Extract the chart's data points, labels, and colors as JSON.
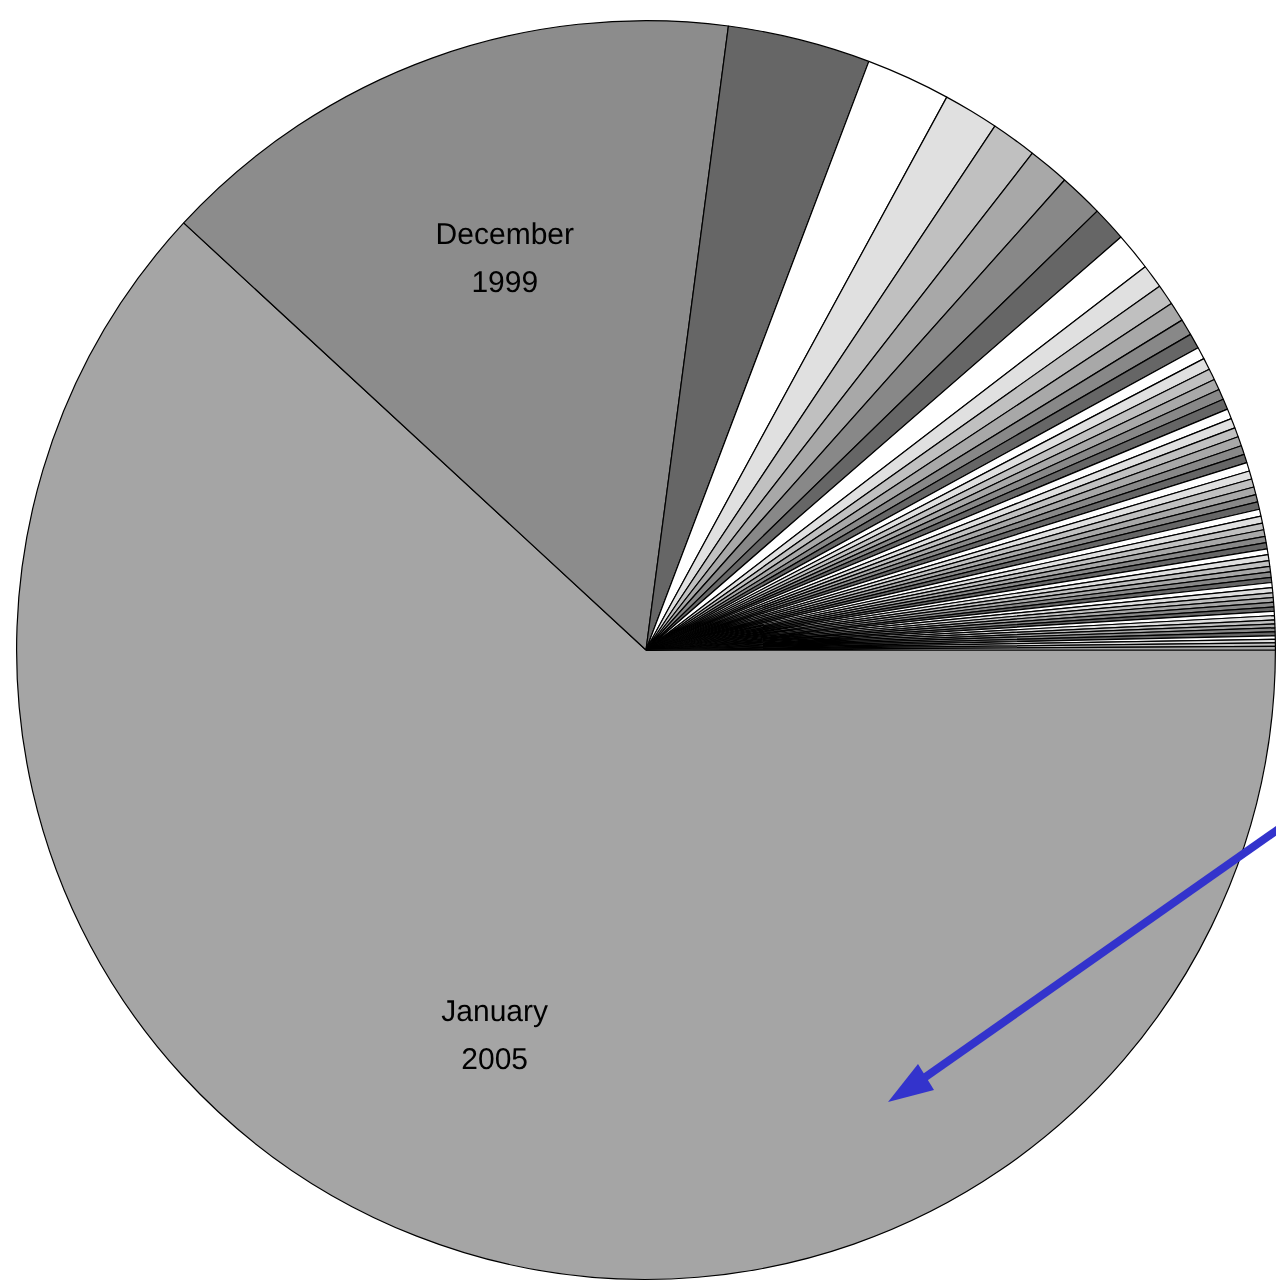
{
  "chart_data": {
    "type": "pie",
    "categories": [
      "January 2005",
      "December 1999",
      null,
      null,
      null,
      null,
      null,
      null,
      null,
      null,
      null,
      null,
      null,
      null,
      null,
      null,
      null,
      null,
      null,
      null,
      null,
      null,
      null,
      null,
      null,
      null,
      null,
      null,
      null,
      null,
      null,
      null,
      null,
      null,
      null,
      null,
      null,
      null,
      null,
      null,
      null,
      null,
      null,
      null,
      null,
      null,
      null,
      null,
      null,
      null,
      null,
      null,
      null,
      null,
      null,
      null,
      null,
      null,
      null,
      null,
      null
    ],
    "values": [
      61.87,
      15.22,
      3.67,
      2.17,
      1.42,
      1.17,
      1.06,
      1.14,
      0.89,
      0.97,
      0.61,
      0.53,
      0.5,
      0.42,
      0.39,
      0.31,
      0.3,
      0.29,
      0.28,
      0.27,
      0.27,
      0.26,
      0.25,
      0.24,
      0.24,
      0.23,
      0.22,
      0.22,
      0.21,
      0.21,
      0.2,
      0.19,
      0.19,
      0.18,
      0.18,
      0.17,
      0.17,
      0.16,
      0.16,
      0.15,
      0.15,
      0.15,
      0.14,
      0.14,
      0.13,
      0.13,
      0.13,
      0.12,
      0.12,
      0.12,
      0.11,
      0.11,
      0.11,
      0.1,
      0.1,
      0.1,
      0.1,
      0.09,
      0.09,
      0.09,
      0.09
    ],
    "colors": [
      "#a5a5a5",
      "#8c8c8c",
      "#666666",
      "#ffffff",
      "#e0e0e0",
      "#c0c0c0",
      "#a8a8a8",
      "#888888",
      "#666666",
      "#ffffff",
      "#e0e0e0",
      "#c0c0c0",
      "#a8a8a8",
      "#888888",
      "#666666",
      "#ffffff",
      "#e0e0e0",
      "#c0c0c0",
      "#a8a8a8",
      "#888888",
      "#666666",
      "#ffffff",
      "#e0e0e0",
      "#c0c0c0",
      "#a8a8a8",
      "#888888",
      "#666666",
      "#ffffff",
      "#e0e0e0",
      "#c0c0c0",
      "#a8a8a8",
      "#888888",
      "#666666",
      "#ffffff",
      "#e0e0e0",
      "#c0c0c0",
      "#a8a8a8",
      "#888888",
      "#666666",
      "#ffffff",
      "#e0e0e0",
      "#c0c0c0",
      "#a8a8a8",
      "#888888",
      "#666666",
      "#ffffff",
      "#e0e0e0",
      "#c0c0c0",
      "#a8a8a8",
      "#888888",
      "#666666",
      "#ffffff",
      "#e0e0e0",
      "#c0c0c0",
      "#a8a8a8",
      "#888888",
      "#666666",
      "#ffffff",
      "#e0e0e0",
      "#c0c0c0",
      "#a8a8a8"
    ],
    "legend": false
  }
}
